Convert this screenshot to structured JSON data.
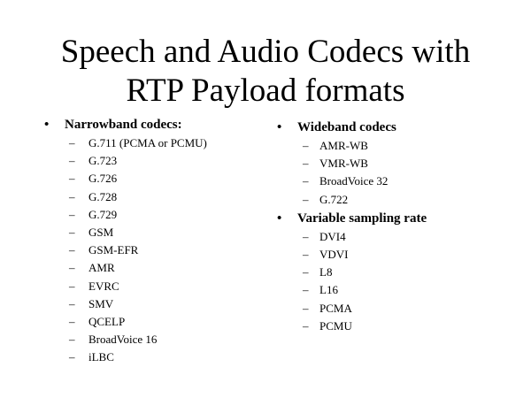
{
  "title": {
    "line1": "Speech and Audio Codecs with",
    "line2": "RTP Payload formats"
  },
  "left": {
    "heading": "Narrowband codecs:",
    "items": [
      "G.711 (PCMA or PCMU)",
      "G.723",
      "G.726",
      "G.728",
      "G.729",
      "GSM",
      "GSM-EFR",
      "AMR",
      "EVRC",
      "SMV",
      "QCELP",
      "BroadVoice 16",
      "iLBC"
    ]
  },
  "right": {
    "groups": [
      {
        "heading": "Wideband codecs",
        "items": [
          "AMR-WB",
          "VMR-WB",
          "BroadVoice 32",
          "G.722"
        ]
      },
      {
        "heading": "Variable sampling rate",
        "items": [
          "DVI4",
          "VDVI",
          "L8",
          "L16",
          "PCMA",
          "PCMU"
        ]
      }
    ]
  },
  "symbols": {
    "bullet": "•",
    "dash": "–"
  }
}
